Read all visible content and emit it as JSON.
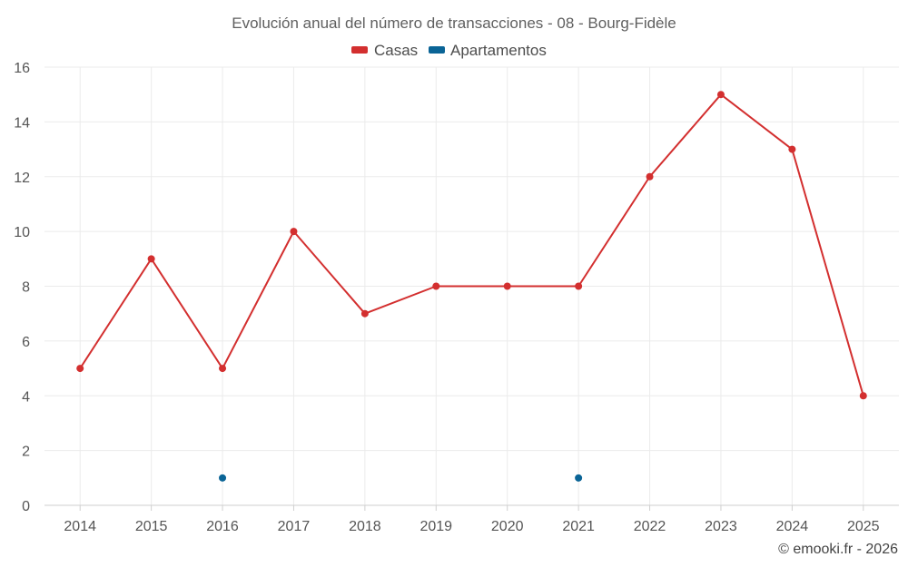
{
  "chart_data": {
    "type": "line",
    "title": "Evolución anual del número de transacciones - 08 - Bourg-Fidèle",
    "categories": [
      "2014",
      "2015",
      "2016",
      "2017",
      "2018",
      "2019",
      "2020",
      "2021",
      "2022",
      "2023",
      "2024",
      "2025"
    ],
    "series": [
      {
        "name": "Casas",
        "color": "#d32f2f",
        "values": [
          5,
          9,
          5,
          10,
          7,
          8,
          8,
          8,
          12,
          15,
          13,
          4
        ]
      },
      {
        "name": "Apartamentos",
        "color": "#0a6496",
        "values": [
          null,
          null,
          1,
          null,
          null,
          null,
          null,
          1,
          null,
          null,
          null,
          null
        ]
      }
    ],
    "ylim": [
      0,
      16
    ],
    "yticks": [
      0,
      2,
      4,
      6,
      8,
      10,
      12,
      14,
      16
    ],
    "grid": true,
    "legend": "top-center",
    "credit": "© emooki.fr - 2026"
  }
}
